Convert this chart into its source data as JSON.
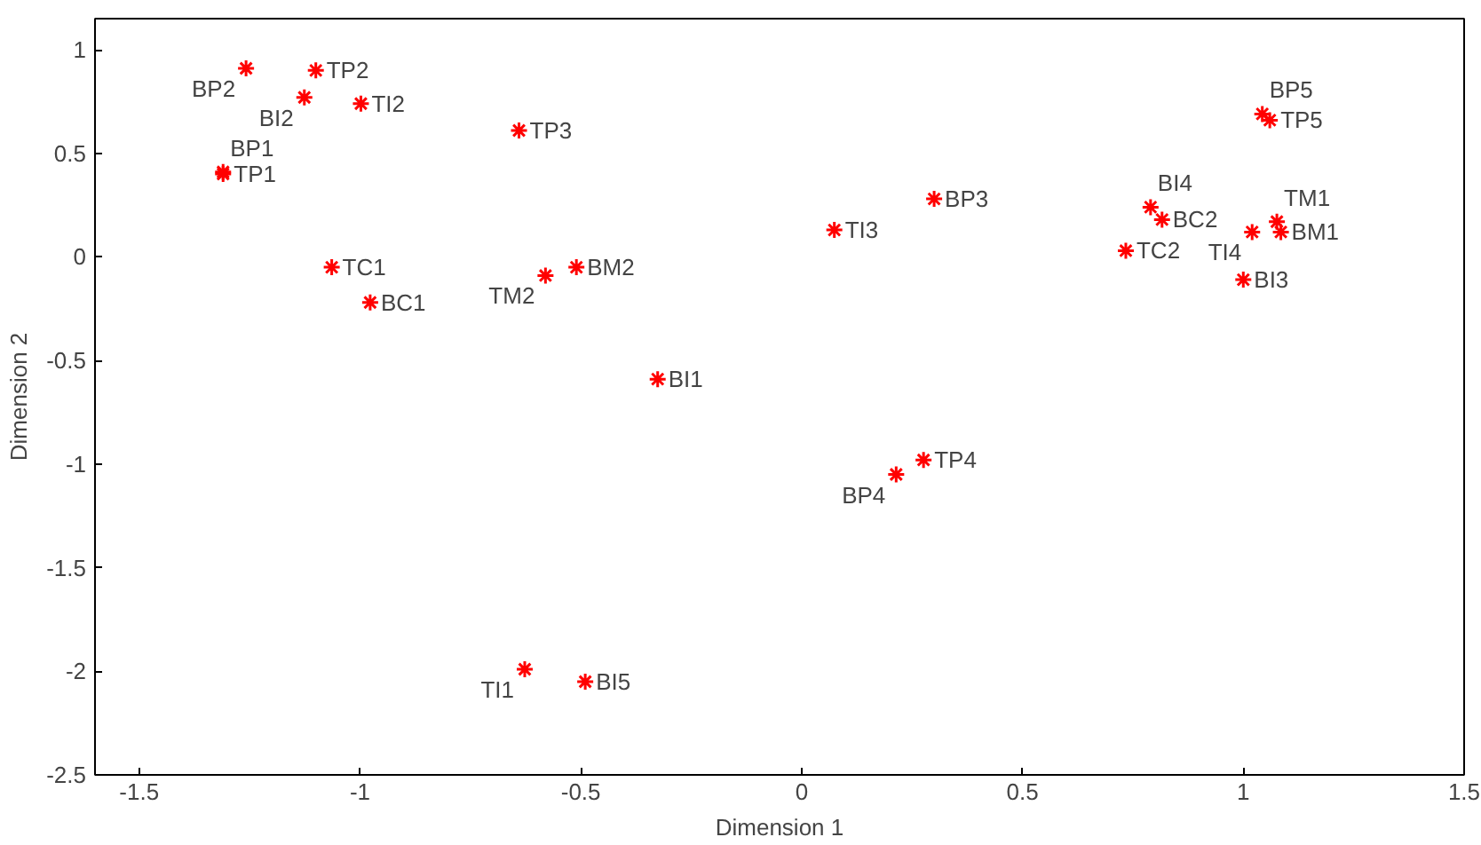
{
  "chart_data": {
    "type": "scatter",
    "xlabel": "Dimension 1",
    "ylabel": "Dimension 2",
    "xlim": [
      -1.6,
      1.5
    ],
    "ylim": [
      -2.5,
      1.15
    ],
    "xticks": [
      -1.5,
      -1,
      -0.5,
      0,
      0.5,
      1,
      1.5
    ],
    "yticks": [
      -2.5,
      -2,
      -1.5,
      -1,
      -0.5,
      0,
      0.5,
      1
    ],
    "grid": false,
    "marker": "cross",
    "series": [
      {
        "color": "#ff0000",
        "x": [
          -1.258,
          -1.1,
          -1.126,
          -0.998,
          -0.64,
          -1.31,
          -1.31,
          -1.064,
          -0.977,
          -0.58,
          -0.51,
          -0.326,
          0.074,
          0.3,
          0.276,
          0.214,
          -0.627,
          -0.49,
          1.043,
          1.06,
          0.79,
          0.816,
          0.734,
          1.02,
          1.0,
          1.076,
          1.085
        ],
        "values": [
          0.91,
          0.9,
          0.77,
          0.74,
          0.61,
          0.41,
          0.4,
          -0.05,
          -0.22,
          -0.09,
          -0.05,
          -0.59,
          0.13,
          0.28,
          -0.98,
          -1.05,
          -1.99,
          -2.05,
          0.69,
          0.66,
          0.24,
          0.18,
          0.03,
          0.12,
          -0.11,
          0.17,
          0.12
        ]
      }
    ],
    "annotations": [
      {
        "text": "BP2",
        "x": -1.258,
        "y": 0.91
      },
      {
        "text": "TP2",
        "x": -1.1,
        "y": 0.9
      },
      {
        "text": "BI2",
        "x": -1.126,
        "y": 0.77
      },
      {
        "text": "TI2",
        "x": -0.998,
        "y": 0.74
      },
      {
        "text": "TP3",
        "x": -0.64,
        "y": 0.61
      },
      {
        "text": "BP1",
        "x": -1.31,
        "y": 0.41
      },
      {
        "text": "TP1",
        "x": -1.31,
        "y": 0.4
      },
      {
        "text": "TC1",
        "x": -1.064,
        "y": -0.05
      },
      {
        "text": "BC1",
        "x": -0.977,
        "y": -0.22
      },
      {
        "text": "TM2",
        "x": -0.58,
        "y": -0.09
      },
      {
        "text": "BM2",
        "x": -0.51,
        "y": -0.05
      },
      {
        "text": "BI1",
        "x": -0.326,
        "y": -0.59
      },
      {
        "text": "TI3",
        "x": 0.074,
        "y": 0.13
      },
      {
        "text": "BP3",
        "x": 0.3,
        "y": 0.28
      },
      {
        "text": "TP4",
        "x": 0.276,
        "y": -0.98
      },
      {
        "text": "BP4",
        "x": 0.214,
        "y": -1.05
      },
      {
        "text": "TI1",
        "x": -0.627,
        "y": -1.99
      },
      {
        "text": "BI5",
        "x": -0.49,
        "y": -2.05
      },
      {
        "text": "BP5",
        "x": 1.043,
        "y": 0.69
      },
      {
        "text": "TP5",
        "x": 1.06,
        "y": 0.66
      },
      {
        "text": "BI4",
        "x": 0.79,
        "y": 0.24
      },
      {
        "text": "BC2",
        "x": 0.816,
        "y": 0.18
      },
      {
        "text": "TC2",
        "x": 0.734,
        "y": 0.03
      },
      {
        "text": "TI4",
        "x": 1.02,
        "y": 0.12
      },
      {
        "text": "BI3",
        "x": 1.0,
        "y": -0.11
      },
      {
        "text": "TM1",
        "x": 1.076,
        "y": 0.17
      },
      {
        "text": "BM1",
        "x": 1.085,
        "y": 0.12
      }
    ]
  }
}
